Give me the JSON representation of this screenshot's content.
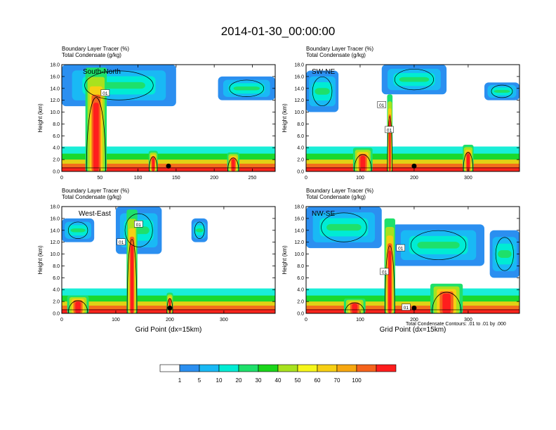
{
  "title": "2014-01-30_00:00:00",
  "footnote": "Total Condensate Contours: .01 to .01 by .000",
  "colors": [
    "#ffffff",
    "#2b8ff0",
    "#19b9f5",
    "#00ecd4",
    "#1ee06b",
    "#1bd61b",
    "#a8e21e",
    "#f6f61a",
    "#f7cf13",
    "#f7a70f",
    "#f5631c",
    "#ff1d1d"
  ],
  "chart_data": [
    {
      "type": "heatmap",
      "label": "South-North",
      "title_lines": [
        "Boundary Layer Tracer    (%)",
        "Total Condensate    (g/kg)"
      ],
      "ylabel": "Height (km)",
      "xlabel": "",
      "ylim": [
        0,
        18
      ],
      "xlim": [
        0,
        280
      ],
      "yticks": [
        "0.0",
        "2.0",
        "4.0",
        "6.0",
        "8.0",
        "10.0",
        "12.0",
        "14.0",
        "16.0",
        "18.0"
      ],
      "xticks": [
        0,
        50,
        100,
        150,
        200,
        250
      ],
      "contour_labels": [
        {
          "text": "01",
          "x": 57,
          "y": 13.2
        }
      ]
    },
    {
      "type": "heatmap",
      "label": "SW-NE",
      "title_lines": [
        "Boundary Layer Tracer    (%)",
        "Total Condensate    (g/kg)"
      ],
      "ylabel": "Height (km)",
      "xlabel": "",
      "ylim": [
        0,
        18
      ],
      "xlim": [
        0,
        395
      ],
      "yticks": [
        "0.0",
        "2.0",
        "4.0",
        "6.0",
        "8.0",
        "10.0",
        "12.0",
        "14.0",
        "16.0",
        "18.0"
      ],
      "xticks": [
        0,
        100,
        200,
        300
      ],
      "contour_labels": [
        {
          "text": "01",
          "x": 140,
          "y": 11.2
        },
        {
          "text": "01",
          "x": 154,
          "y": 7.0
        }
      ]
    },
    {
      "type": "heatmap",
      "label": "West-East",
      "title_lines": [
        "Boundary Layer Tracer    (%)",
        "Total Condensate    (g/kg)"
      ],
      "ylabel": "Height (km)",
      "xlabel": "Grid Point (dx=15km)",
      "ylim": [
        0,
        18
      ],
      "xlim": [
        0,
        395
      ],
      "yticks": [
        "0.0",
        "2.0",
        "4.0",
        "6.0",
        "8.0",
        "10.0",
        "12.0",
        "14.0",
        "16.0",
        "18.0"
      ],
      "xticks": [
        0,
        100,
        200,
        300
      ],
      "contour_labels": [
        {
          "text": "01",
          "x": 142,
          "y": 15.0
        },
        {
          "text": "01",
          "x": 110,
          "y": 12.0
        }
      ]
    },
    {
      "type": "heatmap",
      "label": "NW-SE",
      "title_lines": [
        "Boundary Layer Tracer    (%)",
        "Total Condensate    (g/kg)"
      ],
      "ylabel": "Height (km)",
      "xlabel": "Grid Point (dx=15km)",
      "ylim": [
        0,
        18
      ],
      "xlim": [
        0,
        395
      ],
      "yticks": [
        "0.0",
        "2.0",
        "4.0",
        "6.0",
        "8.0",
        "10.0",
        "12.0",
        "14.0",
        "16.0",
        "18.0"
      ],
      "xticks": [
        0,
        100,
        200,
        300
      ],
      "contour_labels": [
        {
          "text": "01",
          "x": 175,
          "y": 11.0
        },
        {
          "text": "01",
          "x": 145,
          "y": 7.0
        },
        {
          "text": "01",
          "x": 185,
          "y": 1.0
        }
      ]
    }
  ],
  "colorbar": {
    "labels": [
      "1",
      "5",
      "10",
      "20",
      "30",
      "40",
      "50",
      "60",
      "70",
      "100"
    ]
  }
}
